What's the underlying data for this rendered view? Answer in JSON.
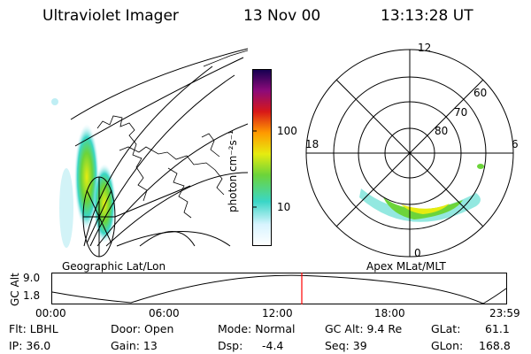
{
  "header": {
    "instrument": "Ultraviolet Imager",
    "date": "13 Nov 00",
    "time": "13:13:28 UT"
  },
  "geo_panel": {
    "label": "Geographic Lat/Lon"
  },
  "polar_panel": {
    "label": "Apex MLat/MLT",
    "mlt_labels": {
      "top": "12",
      "left": "18",
      "right": "6",
      "bottom": "0"
    },
    "lat_labels": [
      "60",
      "70",
      "80"
    ]
  },
  "colorbar": {
    "unit_label": "photon cm⁻²s⁻¹",
    "ticks": [
      "100",
      "10"
    ],
    "scale": "log",
    "colors": [
      "#ffffff",
      "#d8f4ff",
      "#3ad6c6",
      "#6cd43a",
      "#e6ec10",
      "#ff9a00",
      "#d81818",
      "#8c0a7a",
      "#140050"
    ]
  },
  "timeline": {
    "ylabel": "GC Alt",
    "yticks": [
      "9.0",
      "1.8"
    ],
    "xticks": [
      "00:00",
      "06:00",
      "12:00",
      "18:00",
      "23:59"
    ],
    "marker_color": "#ff0000"
  },
  "footer": {
    "col1": [
      "Flt: LBHL",
      "IP: 36.0"
    ],
    "col2": [
      "Door: Open",
      "Gain: 13"
    ],
    "col3a": [
      "Mode: Normal",
      "Dsp:"
    ],
    "col3b": [
      "",
      "-4.4"
    ],
    "col4": [
      "GC Alt: 9.4 Re",
      "Seq: 39"
    ],
    "col5": [
      "GLat:",
      "GLon:"
    ],
    "col5v": [
      "61.1",
      "168.8"
    ]
  }
}
